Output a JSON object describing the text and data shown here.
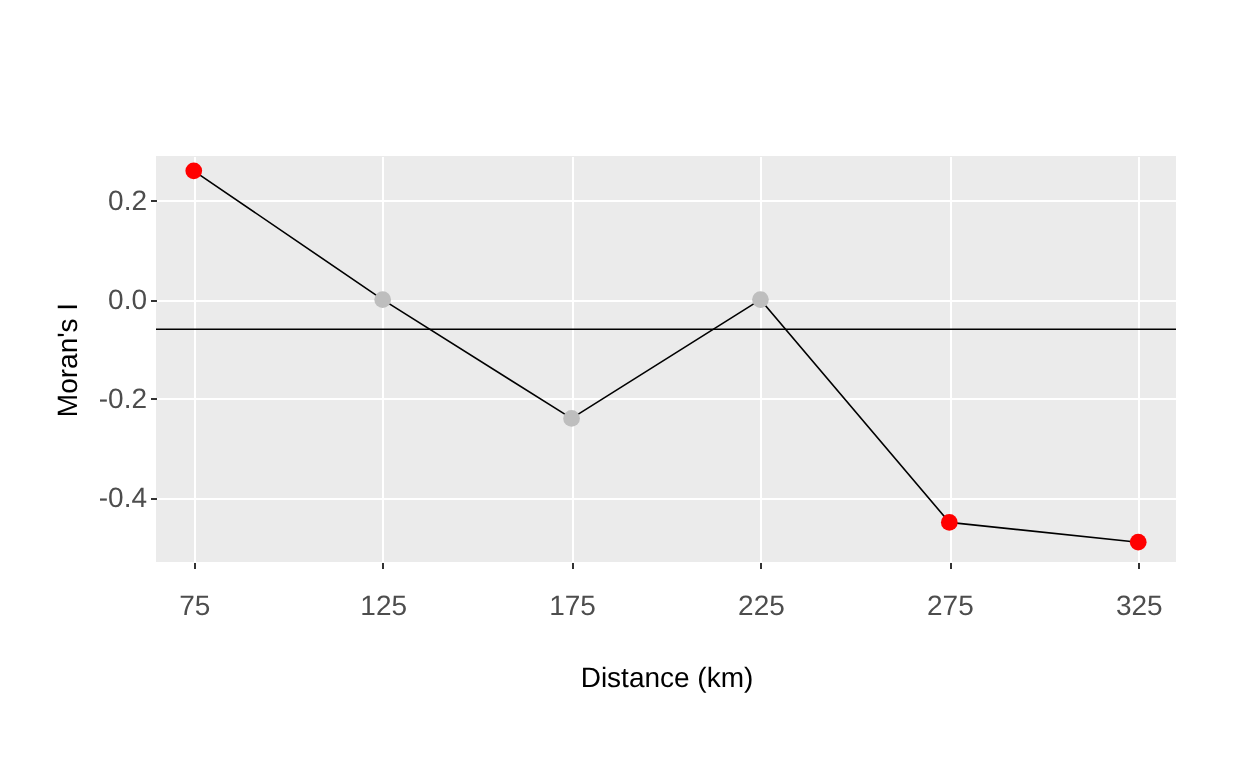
{
  "chart_data": {
    "type": "line",
    "xlabel": "Distance (km)",
    "ylabel": "Moran's I",
    "x": [
      75,
      125,
      175,
      225,
      275,
      325
    ],
    "series": [
      {
        "color": "#000000",
        "values": [
          0.26,
          0.0,
          -0.24,
          0.0,
          -0.45,
          -0.49
        ],
        "colors": [
          "#ff0000",
          "#bebebe",
          "#bebebe",
          "#bebebe",
          "#ff0000",
          "#ff0000"
        ]
      }
    ],
    "xlim": [
      65,
      335
    ],
    "xticks": [
      75,
      125,
      175,
      225,
      275,
      325
    ],
    "ylim": [
      -0.53,
      0.29
    ],
    "yticks": [
      {
        "value": -0.4,
        "label": "-0.4"
      },
      {
        "value": -0.2,
        "label": "-0.2"
      },
      {
        "value": 0,
        "label": "0.0"
      },
      {
        "value": 0.2,
        "label": "0.2"
      }
    ],
    "ref_lines": [
      {
        "axis": "y",
        "value": -0.06,
        "color": "#000000"
      }
    ],
    "grid": true,
    "marker": "circle",
    "line_style": "solid"
  }
}
